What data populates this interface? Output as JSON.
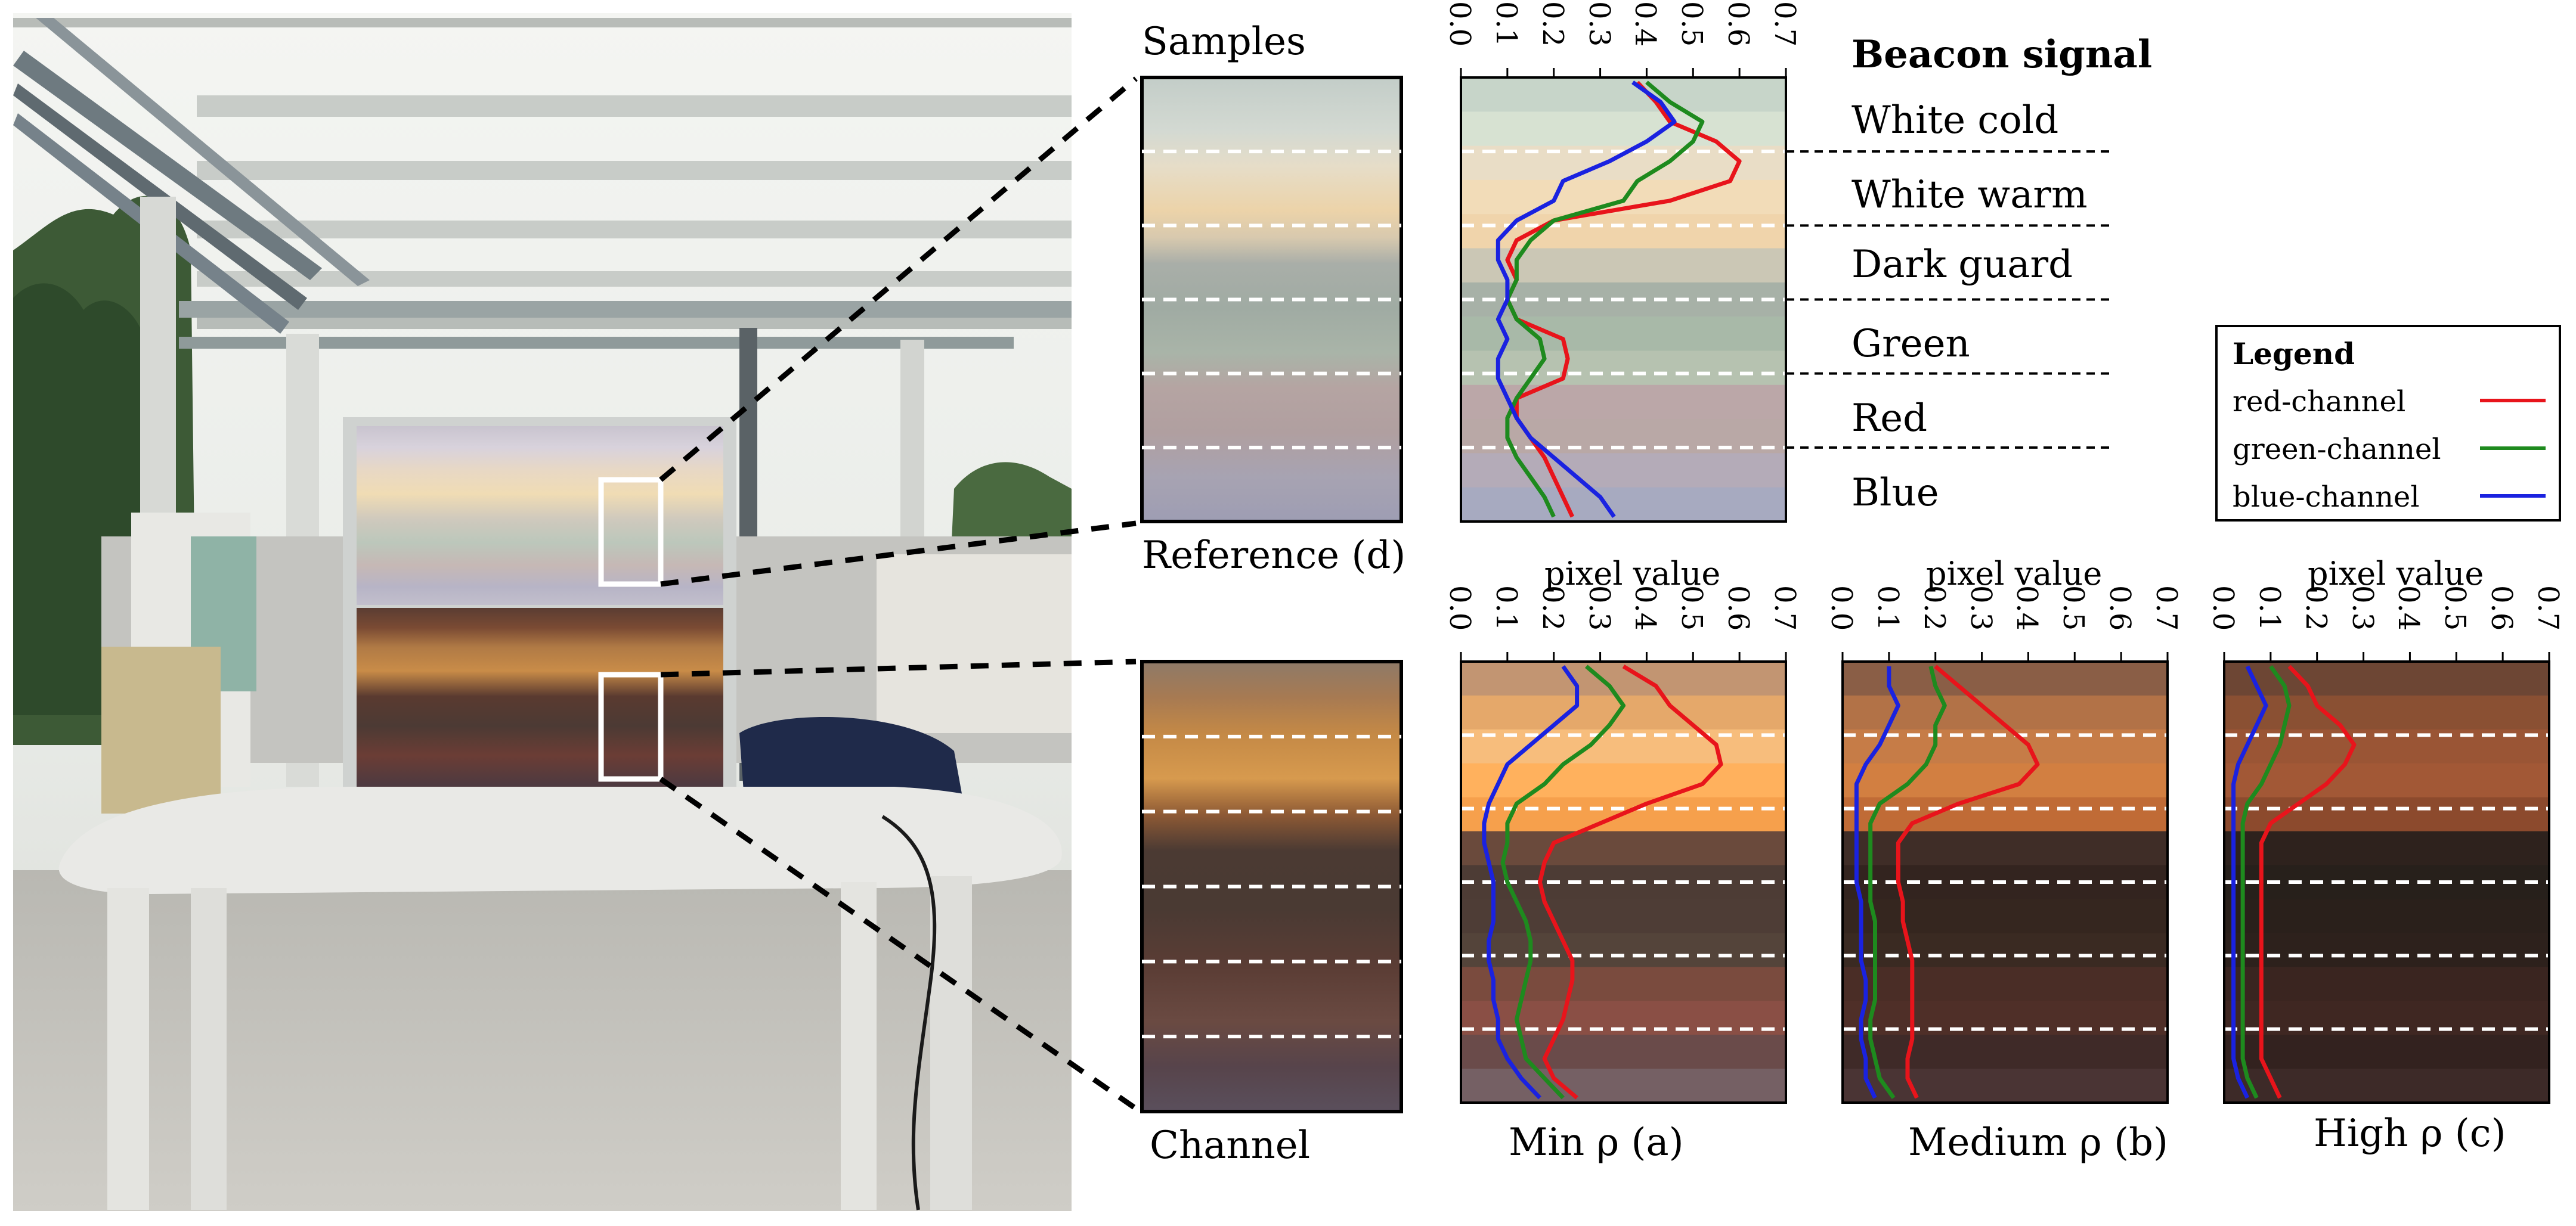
{
  "texts": {
    "samples": "Samples",
    "reference": "Reference (d)",
    "channel": "Channel",
    "beacon_signal": "Beacon signal",
    "pixel_value": "pixel value"
  },
  "categories": [
    "White cold",
    "White warm",
    "Dark guard",
    "Green",
    "Red",
    "Blue"
  ],
  "ticks": [
    "0.0",
    "0.1",
    "0.2",
    "0.3",
    "0.4",
    "0.5",
    "0.6",
    "0.7"
  ],
  "legend": {
    "title": "Legend",
    "items": [
      {
        "label": "red-channel",
        "color": "#e8141b"
      },
      {
        "label": "green-channel",
        "color": "#1e8a1e"
      },
      {
        "label": "blue-channel",
        "color": "#1a22e0"
      }
    ]
  },
  "colors": {
    "red": "#e8141b",
    "green": "#1e8a1e",
    "blue": "#1a22e0"
  },
  "chart_data": [
    {
      "type": "line",
      "caption": "Reference (d)",
      "xlabel": "",
      "xlim": [
        0,
        0.7
      ],
      "y": [
        0,
        6
      ],
      "series": [
        {
          "name": "red-channel",
          "values": [
            0.38,
            0.42,
            0.45,
            0.55,
            0.6,
            0.58,
            0.45,
            0.2,
            0.12,
            0.1,
            0.12,
            0.1,
            0.12,
            0.22,
            0.23,
            0.22,
            0.12,
            0.12,
            0.15,
            0.18,
            0.2,
            0.22,
            0.24
          ]
        },
        {
          "name": "green-channel",
          "values": [
            0.4,
            0.45,
            0.52,
            0.5,
            0.45,
            0.38,
            0.35,
            0.2,
            0.15,
            0.12,
            0.12,
            0.1,
            0.12,
            0.17,
            0.18,
            0.15,
            0.12,
            0.1,
            0.1,
            0.12,
            0.15,
            0.18,
            0.2
          ]
        },
        {
          "name": "blue-channel",
          "values": [
            0.37,
            0.43,
            0.46,
            0.4,
            0.32,
            0.22,
            0.2,
            0.12,
            0.08,
            0.08,
            0.1,
            0.1,
            0.08,
            0.1,
            0.08,
            0.08,
            0.1,
            0.12,
            0.15,
            0.2,
            0.25,
            0.3,
            0.33
          ]
        }
      ]
    },
    {
      "type": "line",
      "caption": "Min ρ (a)",
      "xlabel": "pixel value",
      "xlim": [
        0,
        0.7
      ],
      "y": [
        0,
        6
      ],
      "series": [
        {
          "name": "red-channel",
          "values": [
            0.35,
            0.42,
            0.45,
            0.5,
            0.55,
            0.56,
            0.52,
            0.4,
            0.3,
            0.2,
            0.18,
            0.17,
            0.18,
            0.2,
            0.22,
            0.24,
            0.24,
            0.23,
            0.22,
            0.2,
            0.18,
            0.2,
            0.25
          ]
        },
        {
          "name": "green-channel",
          "values": [
            0.27,
            0.32,
            0.35,
            0.32,
            0.28,
            0.22,
            0.18,
            0.12,
            0.1,
            0.1,
            0.09,
            0.1,
            0.12,
            0.14,
            0.15,
            0.15,
            0.14,
            0.13,
            0.12,
            0.13,
            0.14,
            0.18,
            0.22
          ]
        },
        {
          "name": "blue-channel",
          "values": [
            0.22,
            0.25,
            0.25,
            0.2,
            0.15,
            0.1,
            0.08,
            0.06,
            0.05,
            0.05,
            0.06,
            0.07,
            0.07,
            0.07,
            0.06,
            0.06,
            0.07,
            0.07,
            0.08,
            0.08,
            0.1,
            0.13,
            0.17
          ]
        }
      ]
    },
    {
      "type": "line",
      "caption": "Medium ρ (b)",
      "xlabel": "pixel value",
      "xlim": [
        0,
        0.7
      ],
      "y": [
        0,
        6
      ],
      "series": [
        {
          "name": "red-channel",
          "values": [
            0.2,
            0.25,
            0.3,
            0.35,
            0.4,
            0.42,
            0.38,
            0.25,
            0.15,
            0.12,
            0.12,
            0.12,
            0.13,
            0.13,
            0.14,
            0.15,
            0.15,
            0.15,
            0.15,
            0.15,
            0.14,
            0.14,
            0.16
          ]
        },
        {
          "name": "green-channel",
          "values": [
            0.19,
            0.2,
            0.22,
            0.2,
            0.2,
            0.18,
            0.14,
            0.08,
            0.06,
            0.06,
            0.06,
            0.06,
            0.06,
            0.07,
            0.07,
            0.07,
            0.07,
            0.07,
            0.06,
            0.06,
            0.07,
            0.08,
            0.11
          ]
        },
        {
          "name": "blue-channel",
          "values": [
            0.1,
            0.1,
            0.12,
            0.1,
            0.08,
            0.05,
            0.03,
            0.03,
            0.03,
            0.03,
            0.03,
            0.03,
            0.04,
            0.04,
            0.04,
            0.04,
            0.05,
            0.05,
            0.04,
            0.04,
            0.05,
            0.05,
            0.07
          ]
        }
      ]
    },
    {
      "type": "line",
      "caption": "High ρ (c)",
      "xlabel": "pixel value",
      "xlim": [
        0,
        0.7
      ],
      "y": [
        0,
        6
      ],
      "series": [
        {
          "name": "red-channel",
          "values": [
            0.14,
            0.18,
            0.2,
            0.25,
            0.28,
            0.26,
            0.22,
            0.16,
            0.1,
            0.08,
            0.08,
            0.08,
            0.08,
            0.08,
            0.08,
            0.08,
            0.08,
            0.08,
            0.08,
            0.08,
            0.08,
            0.1,
            0.12
          ]
        },
        {
          "name": "green-channel",
          "values": [
            0.1,
            0.13,
            0.14,
            0.13,
            0.12,
            0.1,
            0.08,
            0.05,
            0.04,
            0.04,
            0.04,
            0.04,
            0.04,
            0.04,
            0.04,
            0.04,
            0.04,
            0.04,
            0.04,
            0.04,
            0.04,
            0.05,
            0.07
          ]
        },
        {
          "name": "blue-channel",
          "values": [
            0.05,
            0.07,
            0.09,
            0.07,
            0.05,
            0.03,
            0.02,
            0.02,
            0.02,
            0.02,
            0.02,
            0.02,
            0.02,
            0.02,
            0.02,
            0.02,
            0.02,
            0.02,
            0.02,
            0.02,
            0.02,
            0.03,
            0.05
          ]
        }
      ]
    }
  ]
}
